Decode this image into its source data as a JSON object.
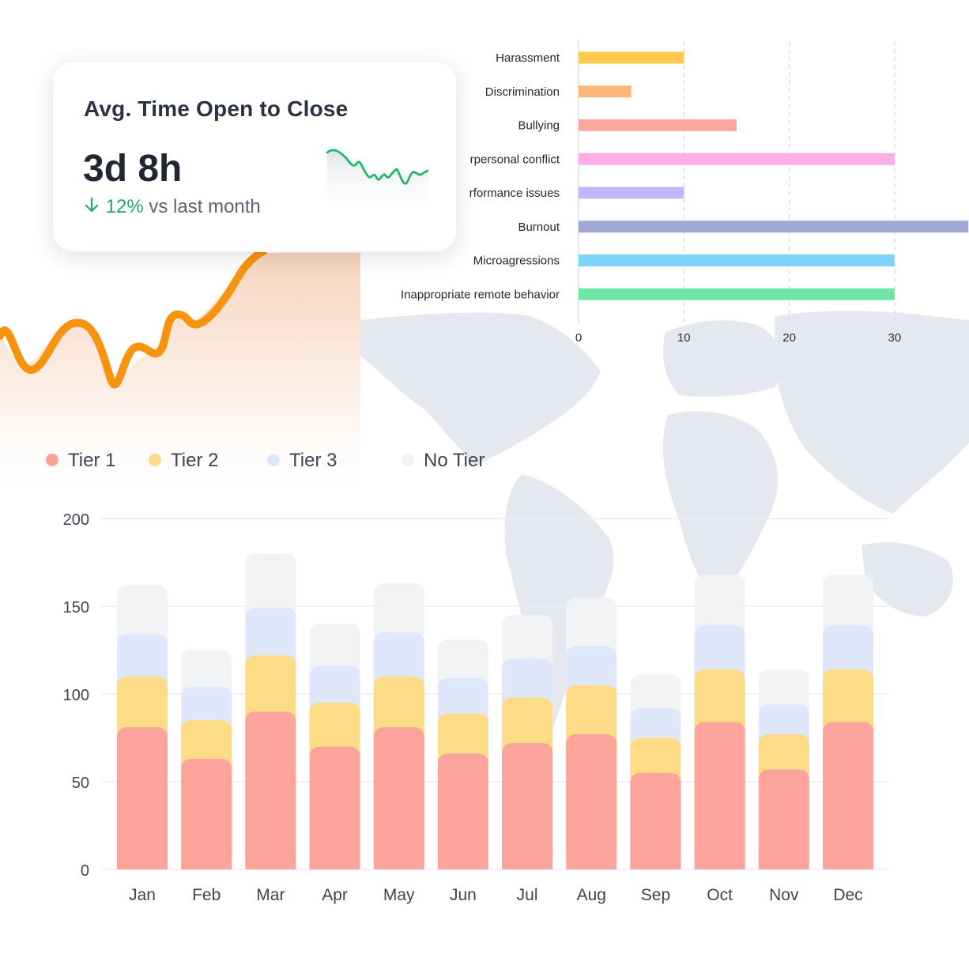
{
  "kpi_card": {
    "title": "Avg. Time Open to Close",
    "value": "3d 8h",
    "change_percent": "12%",
    "change_label": "vs last month",
    "change_direction": "down"
  },
  "chart_data": [
    {
      "type": "bar",
      "orientation": "horizontal",
      "categories": [
        "Harassment",
        "Discrimination",
        "Bullying",
        "rpersonal conflict",
        "rformance issues",
        "Burnout",
        "Microagressions",
        "Inappropriate remote behavior"
      ],
      "values": [
        10,
        5,
        15,
        30,
        10,
        37,
        30,
        30
      ],
      "colors": [
        "#fdc94e",
        "#fdb877",
        "#fca89e",
        "#fdaee6",
        "#c2b6fb",
        "#9ea7d6",
        "#7dd3fc",
        "#6ee7a6"
      ],
      "xticks": [
        0,
        10,
        20,
        30
      ],
      "xlim": [
        0,
        37
      ],
      "grid": true
    },
    {
      "type": "bar",
      "stacked": true,
      "categories": [
        "Jan",
        "Feb",
        "Mar",
        "Apr",
        "May",
        "Jun",
        "Jul",
        "Aug",
        "Sep",
        "Oct",
        "Nov",
        "Dec"
      ],
      "series": [
        {
          "name": "Tier 1",
          "color": "#fca39b",
          "values": [
            81,
            63,
            90,
            70,
            81,
            66,
            72,
            77,
            55,
            84,
            57,
            84
          ]
        },
        {
          "name": "Tier 2",
          "color": "#fddc88",
          "values": [
            29,
            22,
            32,
            25,
            29,
            23,
            26,
            28,
            20,
            30,
            20,
            30
          ]
        },
        {
          "name": "Tier 3",
          "color": "#dfe8fb",
          "values": [
            24,
            19,
            27,
            21,
            25,
            20,
            22,
            22,
            17,
            25,
            17,
            25
          ]
        },
        {
          "name": "No Tier",
          "color": "#f2f3f5",
          "values": [
            28,
            21,
            31,
            24,
            28,
            22,
            25,
            28,
            19,
            29,
            20,
            29
          ]
        }
      ],
      "yticks": [
        0,
        50,
        100,
        150,
        200
      ],
      "ylim": [
        0,
        200
      ],
      "grid": true,
      "legend": "top-left"
    }
  ]
}
